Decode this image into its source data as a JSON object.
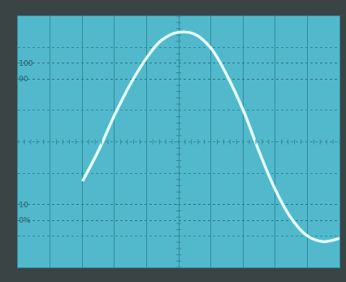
{
  "chart_data": {
    "type": "line",
    "x": [
      2.01,
      2.53,
      3.04,
      3.56,
      4.07,
      4.46,
      4.97,
      5.49,
      6.01,
      6.52,
      7.04,
      7.42,
      7.94,
      8.45,
      8.97,
      9.48,
      10
    ],
    "values": [
      24.9,
      45.4,
      68.5,
      89,
      105.4,
      114.6,
      119.7,
      118.7,
      109.5,
      91.5,
      68.5,
      48,
      22.3,
      2.8,
      -9.5,
      -13.6,
      -11.5
    ],
    "xlim": [
      0,
      10
    ],
    "ylim": [
      -30,
      130
    ],
    "xticks": [
      0,
      1,
      2,
      3,
      4,
      5,
      6,
      7,
      8,
      9,
      10
    ],
    "yticks": [
      {
        "value": 0,
        "label": "0%"
      },
      10,
      90,
      100
    ],
    "grid": true,
    "tick_labels": "y",
    "color": "#e4ffff"
  }
}
